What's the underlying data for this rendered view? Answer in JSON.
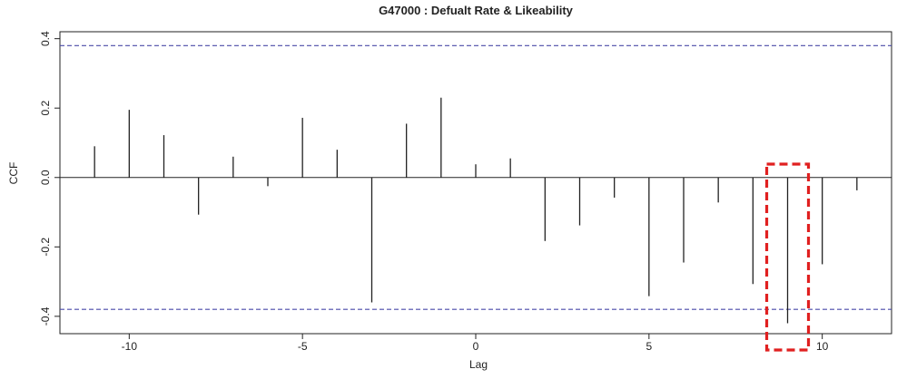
{
  "chart_data": {
    "type": "bar",
    "title": "G47000  : Defualt Rate & Likeability",
    "xlabel": "Lag",
    "ylabel": "CCF",
    "xlim": [
      -12,
      12
    ],
    "ylim": [
      -0.45,
      0.42
    ],
    "x_ticks": [
      {
        "value": -10,
        "label": "-10"
      },
      {
        "value": -5,
        "label": "-5"
      },
      {
        "value": 0,
        "label": "0"
      },
      {
        "value": 5,
        "label": "5"
      },
      {
        "value": 10,
        "label": "10"
      }
    ],
    "y_ticks": [
      {
        "value": 0.4,
        "label": "0.4"
      },
      {
        "value": 0.2,
        "label": "0.2"
      },
      {
        "value": 0.0,
        "label": "0.0"
      },
      {
        "value": -0.2,
        "label": "-0.2"
      },
      {
        "value": -0.4,
        "label": "-0.4"
      }
    ],
    "lags": [
      -11,
      -10,
      -9,
      -8,
      -7,
      -6,
      -5,
      -4,
      -3,
      -2,
      -1,
      0,
      1,
      2,
      3,
      4,
      5,
      6,
      7,
      8,
      9,
      10,
      11
    ],
    "values": [
      0.09,
      0.195,
      0.122,
      -0.107,
      0.06,
      -0.025,
      0.172,
      0.08,
      -0.36,
      0.155,
      0.23,
      0.038,
      0.055,
      -0.183,
      -0.138,
      -0.058,
      -0.342,
      -0.245,
      -0.072,
      -0.307,
      -0.42,
      -0.25,
      -0.037
    ],
    "confidence_bounds": [
      0.38,
      -0.38
    ],
    "highlight": {
      "lag": 9,
      "color": "#e02020"
    },
    "colors": {
      "spike": "#222222",
      "bound": "#4a4aa8",
      "zero_line": "#222222",
      "frame": "#222222"
    }
  }
}
